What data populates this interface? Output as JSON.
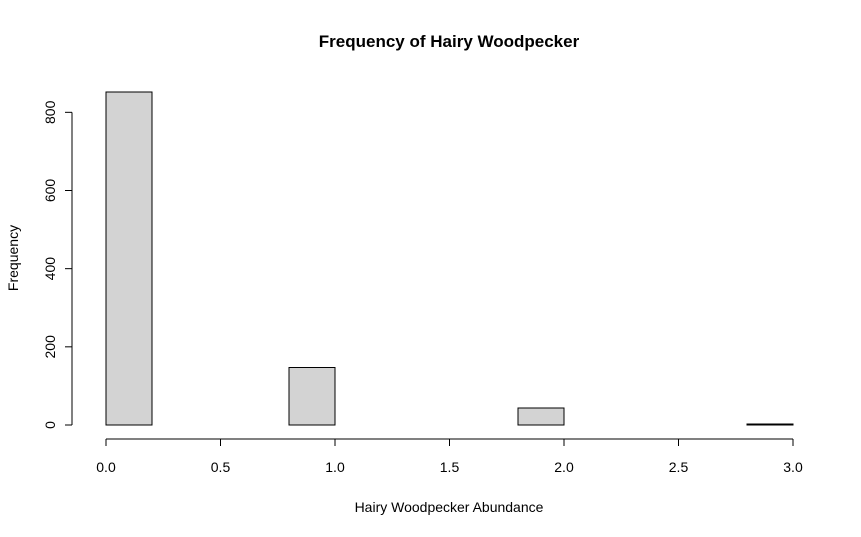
{
  "chart_data": {
    "type": "bar",
    "title": "Frequency of Hairy Woodpecker",
    "xlabel": "Hairy Woodpecker Abundance",
    "ylabel": "Frequency",
    "bins": [
      {
        "x0": 0.0,
        "x1": 0.2,
        "value": 852
      },
      {
        "x0": 0.2,
        "x1": 0.4,
        "value": 0
      },
      {
        "x0": 0.4,
        "x1": 0.6,
        "value": 0
      },
      {
        "x0": 0.6,
        "x1": 0.8,
        "value": 0
      },
      {
        "x0": 0.8,
        "x1": 1.0,
        "value": 147
      },
      {
        "x0": 1.0,
        "x1": 1.2,
        "value": 0
      },
      {
        "x0": 1.2,
        "x1": 1.4,
        "value": 0
      },
      {
        "x0": 1.4,
        "x1": 1.6,
        "value": 0
      },
      {
        "x0": 1.6,
        "x1": 1.8,
        "value": 0
      },
      {
        "x0": 1.8,
        "x1": 2.0,
        "value": 44
      },
      {
        "x0": 2.0,
        "x1": 2.2,
        "value": 0
      },
      {
        "x0": 2.2,
        "x1": 2.4,
        "value": 0
      },
      {
        "x0": 2.4,
        "x1": 2.6,
        "value": 0
      },
      {
        "x0": 2.6,
        "x1": 2.8,
        "value": 0
      },
      {
        "x0": 2.8,
        "x1": 3.0,
        "value": 2
      }
    ],
    "xlim": [
      0,
      3.0
    ],
    "ylim": [
      0,
      852
    ],
    "x_ticks": [
      "0.0",
      "0.5",
      "1.0",
      "1.5",
      "2.0",
      "2.5",
      "3.0"
    ],
    "y_ticks": [
      "0",
      "200",
      "400",
      "600",
      "800"
    ],
    "bar_fill": "#d3d3d3",
    "bar_stroke": "#000000",
    "grid": false,
    "legend": "none"
  }
}
